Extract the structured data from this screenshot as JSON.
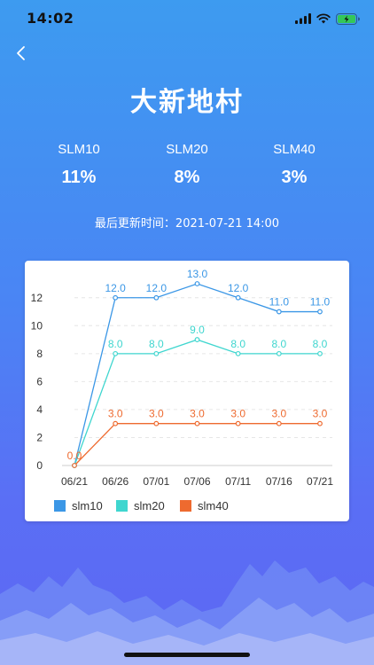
{
  "status_bar": {
    "time": "14:02"
  },
  "header": {
    "title": "大新地村"
  },
  "metrics": [
    {
      "label": "SLM10",
      "value": "11%"
    },
    {
      "label": "SLM20",
      "value": "8%"
    },
    {
      "label": "SLM40",
      "value": "3%"
    }
  ],
  "update": {
    "text": "最后更新时间：2021-07-21 14:00"
  },
  "colors": {
    "slm10": "#3b97e6",
    "slm20": "#3fd6cf",
    "slm40": "#ee6a2f"
  },
  "chart_data": {
    "type": "line",
    "categories": [
      "06/21",
      "06/26",
      "07/01",
      "07/06",
      "07/11",
      "07/16",
      "07/21"
    ],
    "ylim": [
      0,
      13
    ],
    "yticks": [
      0,
      2,
      4,
      6,
      8,
      10,
      12
    ],
    "grid": true,
    "legend_position": "bottom-left",
    "series": [
      {
        "name": "slm10",
        "values": [
          0,
          12,
          12,
          13,
          12,
          11,
          11
        ],
        "labels": [
          "",
          "12.0",
          "12.0",
          "13.0",
          "12.0",
          "11.0",
          "11.0"
        ]
      },
      {
        "name": "slm20",
        "values": [
          0,
          8,
          8,
          9,
          8,
          8,
          8
        ],
        "labels": [
          "",
          "8.0",
          "8.0",
          "9.0",
          "8.0",
          "8.0",
          "8.0"
        ]
      },
      {
        "name": "slm40",
        "values": [
          0,
          3,
          3,
          3,
          3,
          3,
          3
        ],
        "labels": [
          "0.0",
          "3.0",
          "3.0",
          "3.0",
          "3.0",
          "3.0",
          "3.0"
        ]
      }
    ]
  }
}
